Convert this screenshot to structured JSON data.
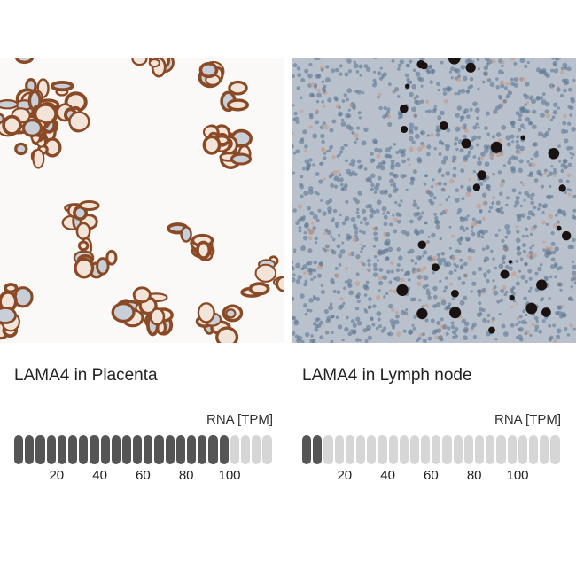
{
  "panels": [
    {
      "title": "LAMA4 in Placenta",
      "rna_label": "RNA [TPM]",
      "filled_segments": 20,
      "total_segments": 24,
      "ticks": [
        "20",
        "40",
        "60",
        "80",
        "100"
      ],
      "stain_color": "#8a4a26",
      "background": "#fbf9f8"
    },
    {
      "title": "LAMA4 in Lymph node",
      "rna_label": "RNA [TPM]",
      "filled_segments": 2,
      "total_segments": 24,
      "ticks": [
        "20",
        "40",
        "60",
        "80",
        "100"
      ],
      "stain_color": "#5d7895",
      "background": "#b9c1cc"
    }
  ],
  "colors": {
    "filled": "#555555",
    "empty": "#d6d6d6"
  }
}
